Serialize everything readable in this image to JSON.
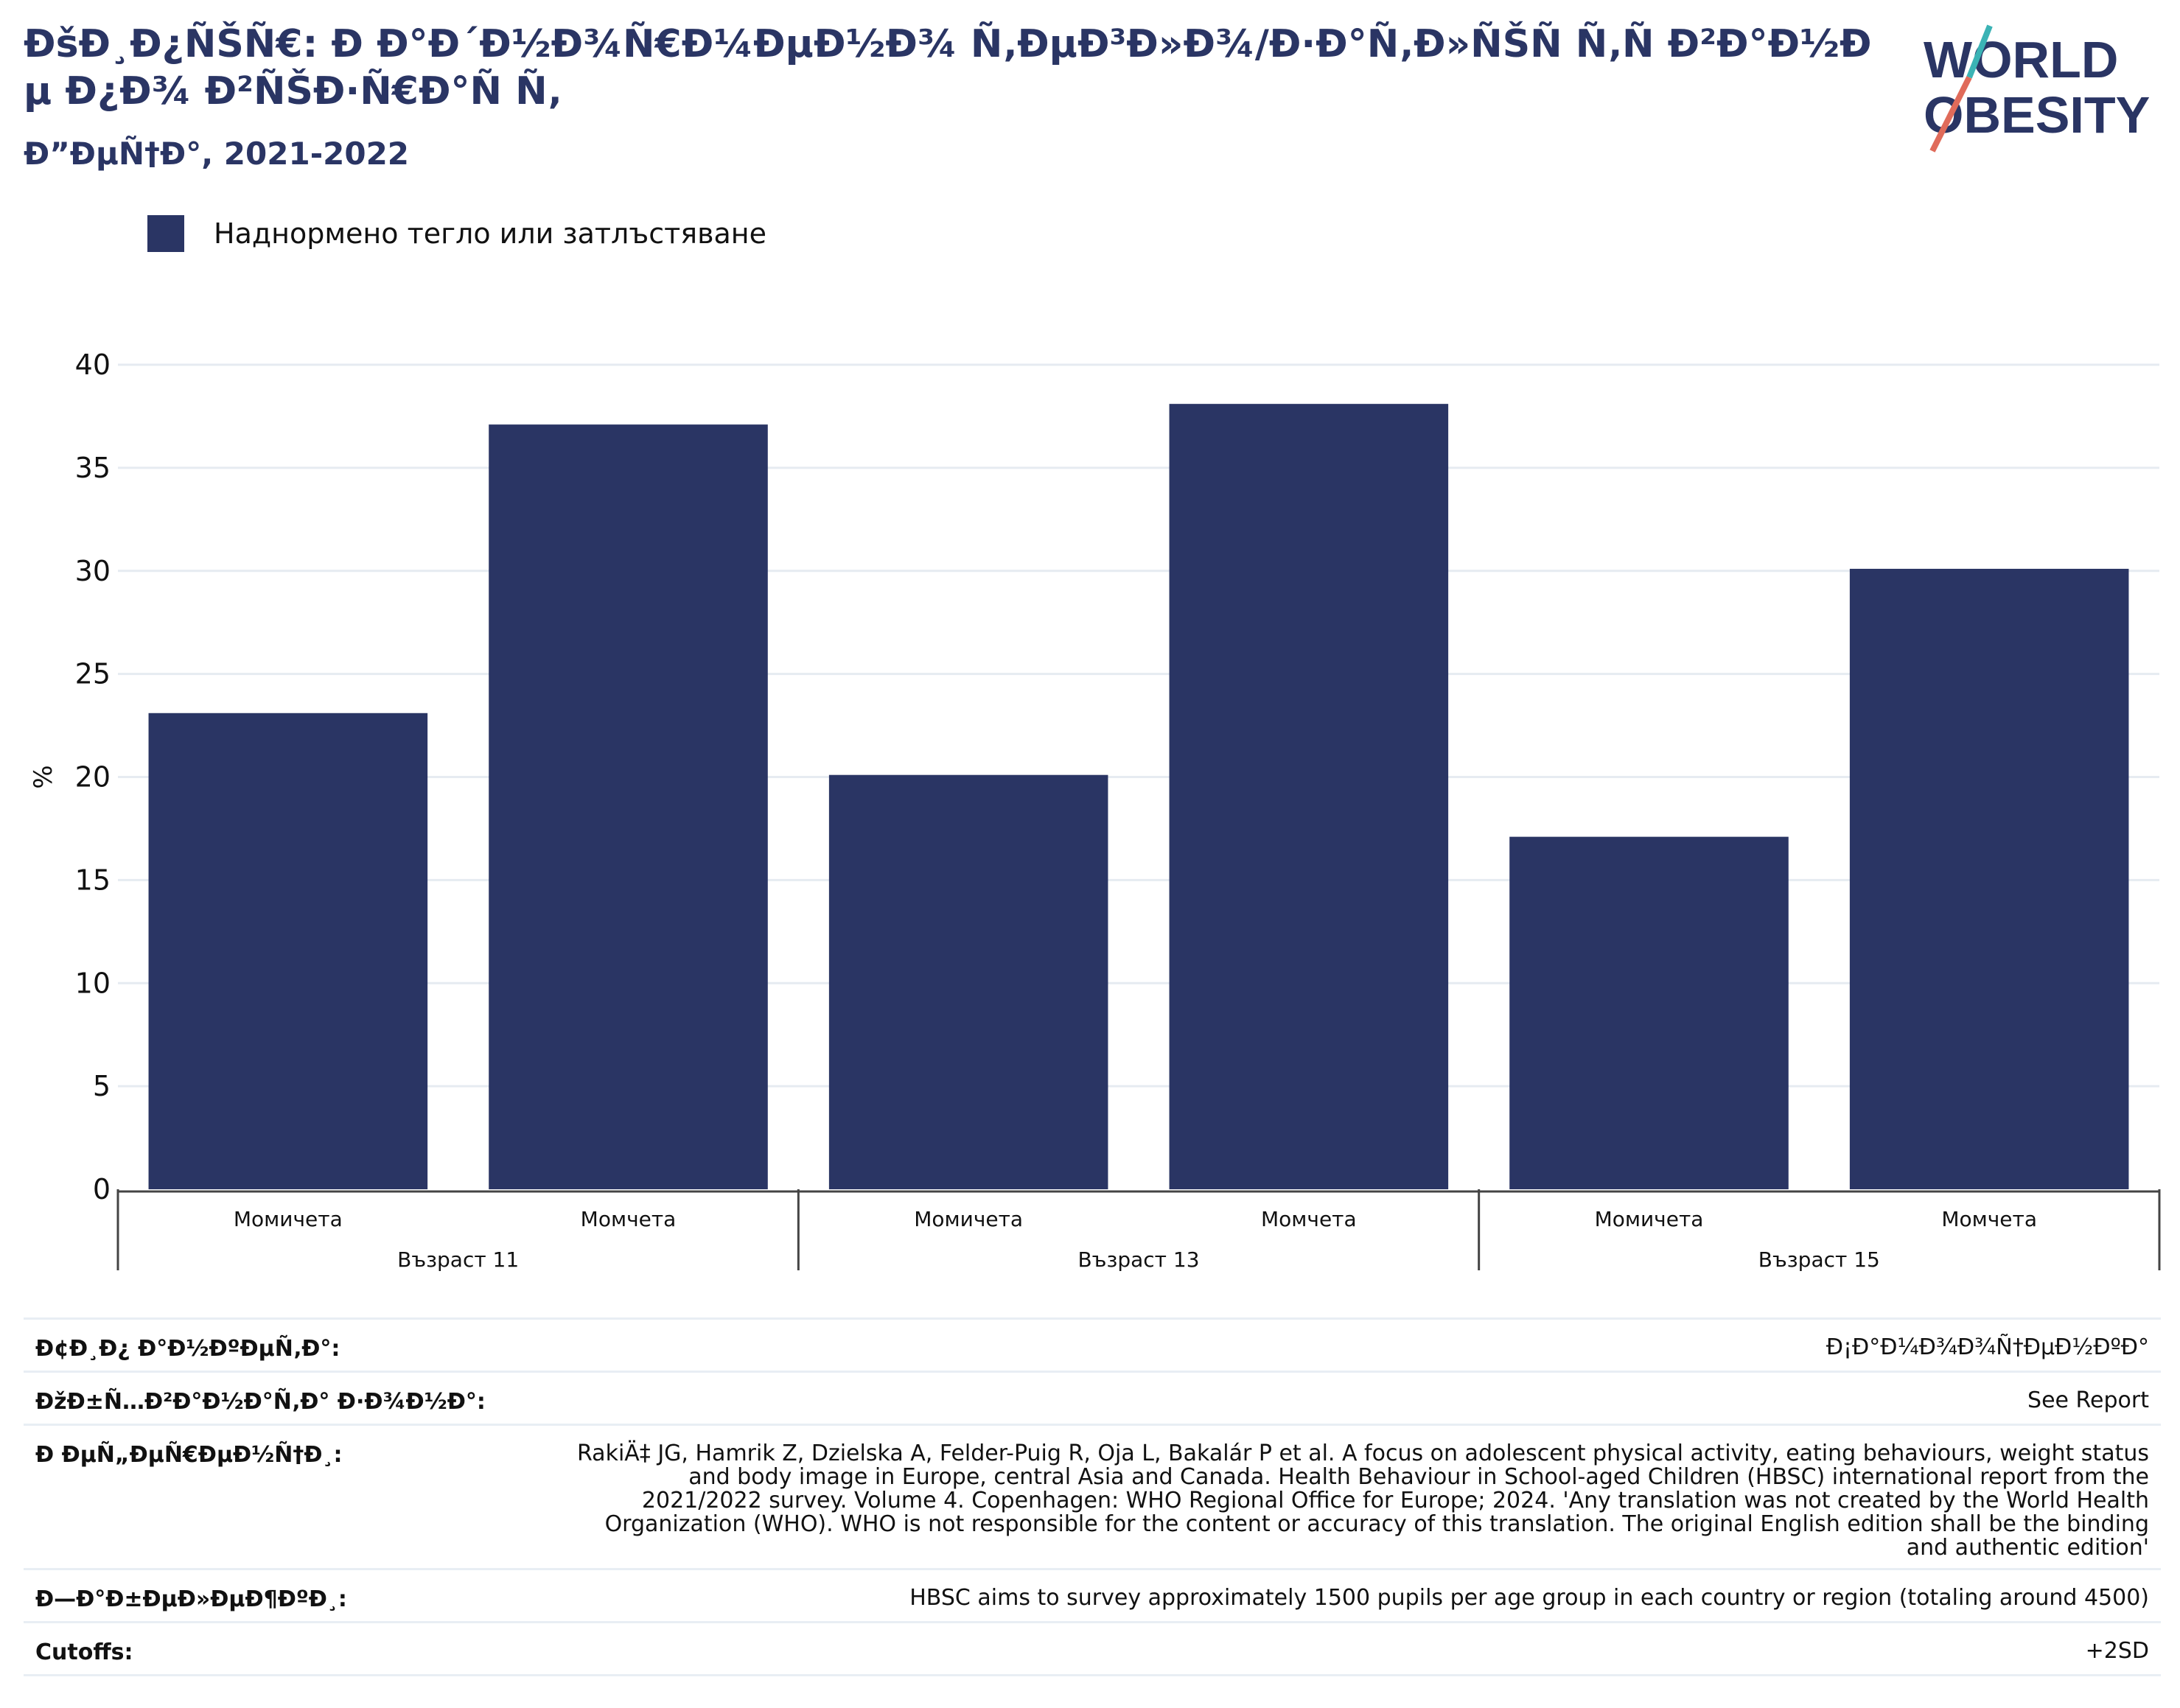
{
  "header": {
    "title": "ÐšÐ¸Ð¿ÑŠÑ€: Ð Ð°Ð´Ð½Ð¾Ñ€Ð¼ÐµÐ½Ð¾ Ñ‚ÐµÐ³Ð»Ð¾/Ð·Ð°Ñ‚Ð»ÑŠÑ Ñ‚Ñ Ð²Ð°Ð½Ðµ Ð¿Ð¾ Ð²ÑŠÐ·Ñ€Ð°Ñ Ñ‚",
    "subtitle": "Ð”ÐµÑ†Ð°, 2021-2022"
  },
  "logo": {
    "line1": "WORLD",
    "line2": "OBESITY",
    "colors": {
      "text": "#2a3564",
      "slash_top": "#3bb3b5",
      "slash_bottom": "#e06b5a"
    }
  },
  "legend": {
    "label": "Наднормено тегло или затлъстяване",
    "color": "#2a3564"
  },
  "chart_data": {
    "type": "bar",
    "categories": [
      "Момичета",
      "Момчета",
      "Момичета",
      "Момчета",
      "Момичета",
      "Момчета"
    ],
    "groups": [
      "Възраст 11",
      "Възраст 13",
      "Възраст 15"
    ],
    "series": [
      {
        "name": "Наднормено тегло или затлъстяване",
        "values": [
          23.1,
          37.1,
          20.1,
          38.1,
          17.1,
          30.1
        ]
      }
    ],
    "ylabel": "%",
    "ylim": [
      0,
      40
    ],
    "yticks": [
      0,
      5,
      10,
      15,
      20,
      25,
      30,
      35,
      40
    ],
    "grid": true,
    "legend_position": "top-left",
    "bar_color": "#2a3564"
  },
  "meta": {
    "rows": [
      {
        "label": "Ð¢Ð¸Ð¿ Ð°Ð½ÐºÐµÑ‚Ð°:",
        "value": "Ð¡Ð°Ð¼Ð¾Ð¾Ñ†ÐµÐ½ÐºÐ°"
      },
      {
        "label": "ÐžÐ±Ñ…Ð²Ð°Ð½Ð°Ñ‚Ð° Ð·Ð¾Ð½Ð°:",
        "value": "See Report"
      },
      {
        "label": "Ð ÐµÑ„ÐµÑ€ÐµÐ½Ñ†Ð¸:",
        "value": "RakiÄ‡ JG, Hamrik Z, Dzielska A, Felder-Puig R, Oja L, Bakalár P et al. A focus on adolescent physical activity, eating behaviours, weight status and body image in Europe, central Asia and Canada. Health Behaviour in School-aged Children (HBSC) international report from the 2021/2022 survey. Volume 4. Copenhagen: WHO Regional Office for Europe; 2024. 'Any translation was not created by the World Health Organization (WHO). WHO is not responsible for the content or accuracy of this translation. The original English edition shall be the binding and authentic edition'"
      },
      {
        "label": "Ð—Ð°Ð±ÐµÐ»ÐµÐ¶ÐºÐ¸:",
        "value": "HBSC aims to survey approximately 1500 pupils per age group in each country or region (totaling around 4500)"
      },
      {
        "label": "Cutoffs:",
        "value": "+2SD"
      }
    ]
  }
}
